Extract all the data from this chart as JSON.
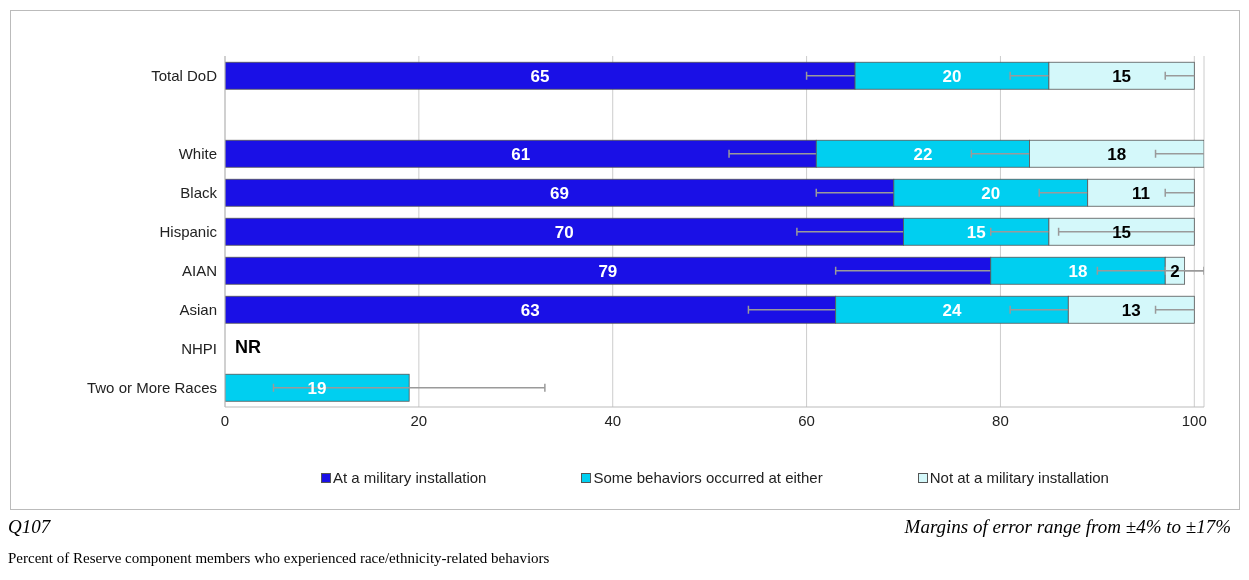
{
  "chart_data": {
    "type": "bar",
    "orientation": "horizontal",
    "stacked": true,
    "categories": [
      "Total DoD",
      null,
      "White",
      "Black",
      "Hispanic",
      "AIAN",
      "Asian",
      "NHPI",
      "Two or More Races"
    ],
    "series": [
      {
        "name": "At a military installation",
        "color": "#1a10e6",
        "values": [
          65,
          null,
          61,
          69,
          70,
          79,
          63,
          null,
          null
        ],
        "errors": [
          5,
          null,
          9,
          8,
          11,
          16,
          9,
          null,
          null
        ]
      },
      {
        "name": "Some behaviors occurred at either",
        "color": "#00cff0",
        "values": [
          20,
          null,
          22,
          20,
          15,
          18,
          24,
          null,
          19
        ],
        "errors": [
          4,
          null,
          6,
          5,
          6,
          7,
          6,
          null,
          14
        ]
      },
      {
        "name": "Not at a military installation",
        "color": "#d4f8fa",
        "values": [
          15,
          null,
          18,
          11,
          15,
          2,
          13,
          null,
          null
        ],
        "errors": [
          [
            97,
            100
          ],
          null,
          [
            96,
            101
          ],
          [
            97,
            100
          ],
          [
            86,
            100
          ],
          [
            97,
            101
          ],
          [
            96,
            100
          ],
          null,
          null
        ]
      }
    ],
    "xlim": [
      0,
      101
    ],
    "xticks": [
      0,
      20,
      40,
      60,
      80,
      100
    ],
    "grid": "x",
    "legend": "bottom",
    "data_labels": true,
    "annotations": [
      "NR",
      "Q107",
      "Margins of error range from ±4% to ±17%",
      "Percent of Reserve component members who experienced race/ethnicity-related behaviors"
    ]
  }
}
